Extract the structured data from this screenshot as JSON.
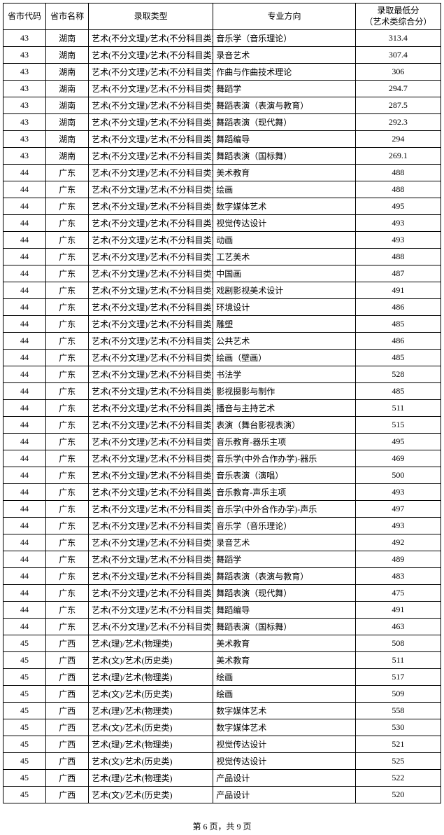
{
  "columns": [
    "省市代码",
    "省市名称",
    "录取类型",
    "专业方向",
    "录取最低分\n（艺术类综合分）"
  ],
  "rows": [
    [
      "43",
      "湖南",
      "艺术(不分文理)/艺术(不分科目类)",
      "音乐学（音乐理论）",
      "313.4"
    ],
    [
      "43",
      "湖南",
      "艺术(不分文理)/艺术(不分科目类)",
      "录音艺术",
      "307.4"
    ],
    [
      "43",
      "湖南",
      "艺术(不分文理)/艺术(不分科目类)",
      "作曲与作曲技术理论",
      "306"
    ],
    [
      "43",
      "湖南",
      "艺术(不分文理)/艺术(不分科目类)",
      "舞蹈学",
      "294.7"
    ],
    [
      "43",
      "湖南",
      "艺术(不分文理)/艺术(不分科目类)",
      "舞蹈表演（表演与教育）",
      "287.5"
    ],
    [
      "43",
      "湖南",
      "艺术(不分文理)/艺术(不分科目类)",
      "舞蹈表演（现代舞）",
      "292.3"
    ],
    [
      "43",
      "湖南",
      "艺术(不分文理)/艺术(不分科目类)",
      "舞蹈编导",
      "294"
    ],
    [
      "43",
      "湖南",
      "艺术(不分文理)/艺术(不分科目类)",
      "舞蹈表演（国标舞）",
      "269.1"
    ],
    [
      "44",
      "广东",
      "艺术(不分文理)/艺术(不分科目类)",
      "美术教育",
      "488"
    ],
    [
      "44",
      "广东",
      "艺术(不分文理)/艺术(不分科目类)",
      "绘画",
      "488"
    ],
    [
      "44",
      "广东",
      "艺术(不分文理)/艺术(不分科目类)",
      "数字媒体艺术",
      "495"
    ],
    [
      "44",
      "广东",
      "艺术(不分文理)/艺术(不分科目类)",
      "视觉传达设计",
      "493"
    ],
    [
      "44",
      "广东",
      "艺术(不分文理)/艺术(不分科目类)",
      "动画",
      "493"
    ],
    [
      "44",
      "广东",
      "艺术(不分文理)/艺术(不分科目类)",
      "工艺美术",
      "488"
    ],
    [
      "44",
      "广东",
      "艺术(不分文理)/艺术(不分科目类)",
      "中国画",
      "487"
    ],
    [
      "44",
      "广东",
      "艺术(不分文理)/艺术(不分科目类)",
      "戏剧影视美术设计",
      "491"
    ],
    [
      "44",
      "广东",
      "艺术(不分文理)/艺术(不分科目类)",
      "环境设计",
      "486"
    ],
    [
      "44",
      "广东",
      "艺术(不分文理)/艺术(不分科目类)",
      "雕塑",
      "485"
    ],
    [
      "44",
      "广东",
      "艺术(不分文理)/艺术(不分科目类)",
      "公共艺术",
      "486"
    ],
    [
      "44",
      "广东",
      "艺术(不分文理)/艺术(不分科目类)",
      "绘画（壁画）",
      "485"
    ],
    [
      "44",
      "广东",
      "艺术(不分文理)/艺术(不分科目类)",
      "书法学",
      "528"
    ],
    [
      "44",
      "广东",
      "艺术(不分文理)/艺术(不分科目类)",
      "影视摄影与制作",
      "485"
    ],
    [
      "44",
      "广东",
      "艺术(不分文理)/艺术(不分科目类)",
      "播音与主持艺术",
      "511"
    ],
    [
      "44",
      "广东",
      "艺术(不分文理)/艺术(不分科目类)",
      "表演（舞台影视表演）",
      "515"
    ],
    [
      "44",
      "广东",
      "艺术(不分文理)/艺术(不分科目类)",
      "音乐教育-器乐主项",
      "495"
    ],
    [
      "44",
      "广东",
      "艺术(不分文理)/艺术(不分科目类)",
      "音乐学(中外合作办学)-器乐",
      "469"
    ],
    [
      "44",
      "广东",
      "艺术(不分文理)/艺术(不分科目类)",
      "音乐表演（演唱）",
      "500"
    ],
    [
      "44",
      "广东",
      "艺术(不分文理)/艺术(不分科目类)",
      "音乐教育-声乐主项",
      "493"
    ],
    [
      "44",
      "广东",
      "艺术(不分文理)/艺术(不分科目类)",
      "音乐学(中外合作办学)-声乐",
      "497"
    ],
    [
      "44",
      "广东",
      "艺术(不分文理)/艺术(不分科目类)",
      "音乐学（音乐理论）",
      "493"
    ],
    [
      "44",
      "广东",
      "艺术(不分文理)/艺术(不分科目类)",
      "录音艺术",
      "492"
    ],
    [
      "44",
      "广东",
      "艺术(不分文理)/艺术(不分科目类)",
      "舞蹈学",
      "489"
    ],
    [
      "44",
      "广东",
      "艺术(不分文理)/艺术(不分科目类)",
      "舞蹈表演（表演与教育）",
      "483"
    ],
    [
      "44",
      "广东",
      "艺术(不分文理)/艺术(不分科目类)",
      "舞蹈表演（现代舞）",
      "475"
    ],
    [
      "44",
      "广东",
      "艺术(不分文理)/艺术(不分科目类)",
      "舞蹈编导",
      "491"
    ],
    [
      "44",
      "广东",
      "艺术(不分文理)/艺术(不分科目类)",
      "舞蹈表演（国标舞）",
      "463"
    ],
    [
      "45",
      "广西",
      "艺术(理)/艺术(物理类)",
      "美术教育",
      "508"
    ],
    [
      "45",
      "广西",
      "艺术(文)/艺术(历史类)",
      "美术教育",
      "511"
    ],
    [
      "45",
      "广西",
      "艺术(理)/艺术(物理类)",
      "绘画",
      "517"
    ],
    [
      "45",
      "广西",
      "艺术(文)/艺术(历史类)",
      "绘画",
      "509"
    ],
    [
      "45",
      "广西",
      "艺术(理)/艺术(物理类)",
      "数字媒体艺术",
      "558"
    ],
    [
      "45",
      "广西",
      "艺术(文)/艺术(历史类)",
      "数字媒体艺术",
      "530"
    ],
    [
      "45",
      "广西",
      "艺术(理)/艺术(物理类)",
      "视觉传达设计",
      "521"
    ],
    [
      "45",
      "广西",
      "艺术(文)/艺术(历史类)",
      "视觉传达设计",
      "525"
    ],
    [
      "45",
      "广西",
      "艺术(理)/艺术(物理类)",
      "产品设计",
      "522"
    ],
    [
      "45",
      "广西",
      "艺术(文)/艺术(历史类)",
      "产品设计",
      "520"
    ]
  ],
  "col_align": [
    "c",
    "c",
    "l",
    "l",
    "c"
  ],
  "footer": "第 6 页，共 9 页"
}
